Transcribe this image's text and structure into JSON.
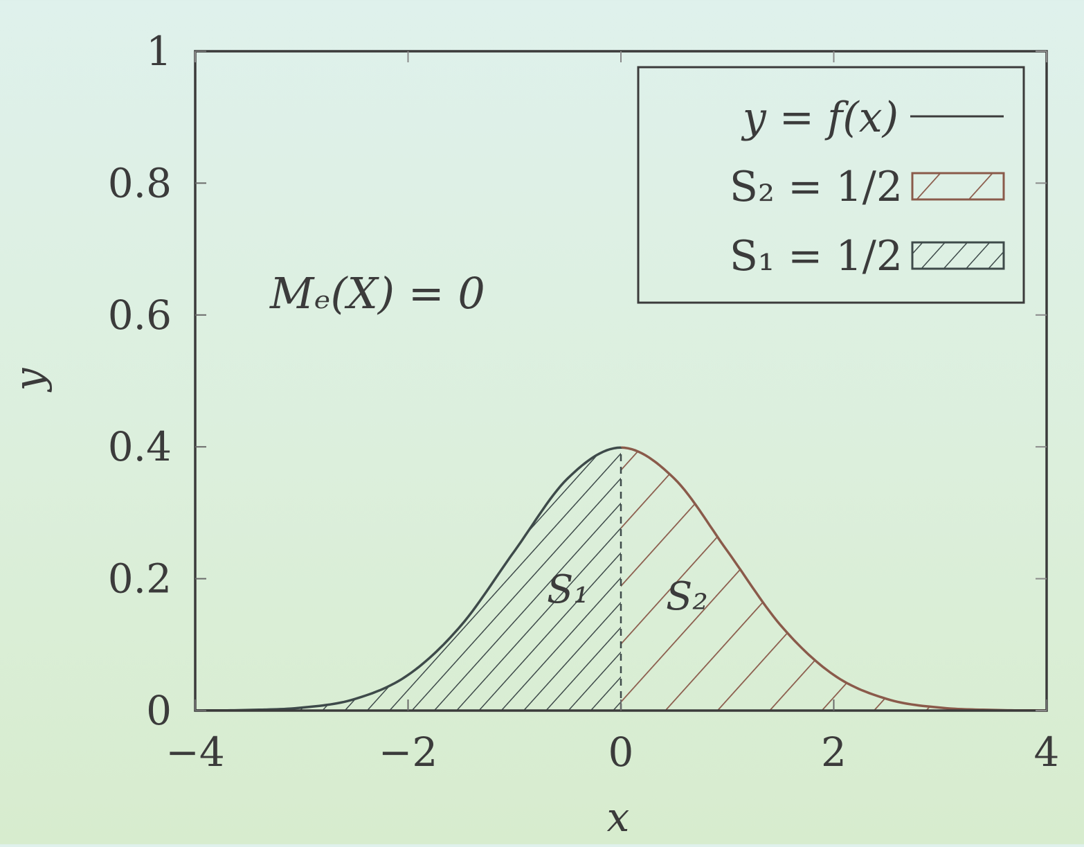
{
  "chart_data": {
    "type": "area",
    "xlabel": "x",
    "ylabel": "y",
    "xlim": [
      -4,
      4
    ],
    "ylim": [
      0,
      1
    ],
    "x_ticks": [
      "−4",
      "−2",
      "0",
      "2",
      "4"
    ],
    "y_ticks": [
      "0",
      "0.2",
      "0.4",
      "0.6",
      "0.8",
      "1"
    ],
    "grid": false,
    "legend_position": "top-right",
    "curve": {
      "label": "y = f(x)",
      "x": [
        -4,
        -3.5,
        -3,
        -2.5,
        -2,
        -1.5,
        -1,
        -0.5,
        0,
        0.5,
        1,
        1.5,
        2,
        2.5,
        3,
        3.5,
        4
      ],
      "y": [
        0.0001,
        0.0009,
        0.0044,
        0.0175,
        0.054,
        0.1295,
        0.242,
        0.3521,
        0.3989,
        0.3521,
        0.242,
        0.1295,
        0.054,
        0.0175,
        0.0044,
        0.0009,
        0.0001
      ]
    },
    "series": [
      {
        "name": "S₁ = 1/2",
        "region_label": "S₁",
        "x_range": [
          -4,
          0
        ],
        "area": 0.5,
        "color": "#3e4a4a",
        "hatch": "dense"
      },
      {
        "name": "S₂ = 1/2",
        "region_label": "S₂",
        "x_range": [
          0,
          4
        ],
        "area": 0.5,
        "color": "#8a5a4a",
        "hatch": "sparse"
      }
    ],
    "annotation": "Mₑ(X) = 0",
    "median_x": 0
  },
  "colors": {
    "axis": "#3b3b3b",
    "curve_left": "#3e4a4a",
    "curve_right": "#8a5a4a"
  }
}
